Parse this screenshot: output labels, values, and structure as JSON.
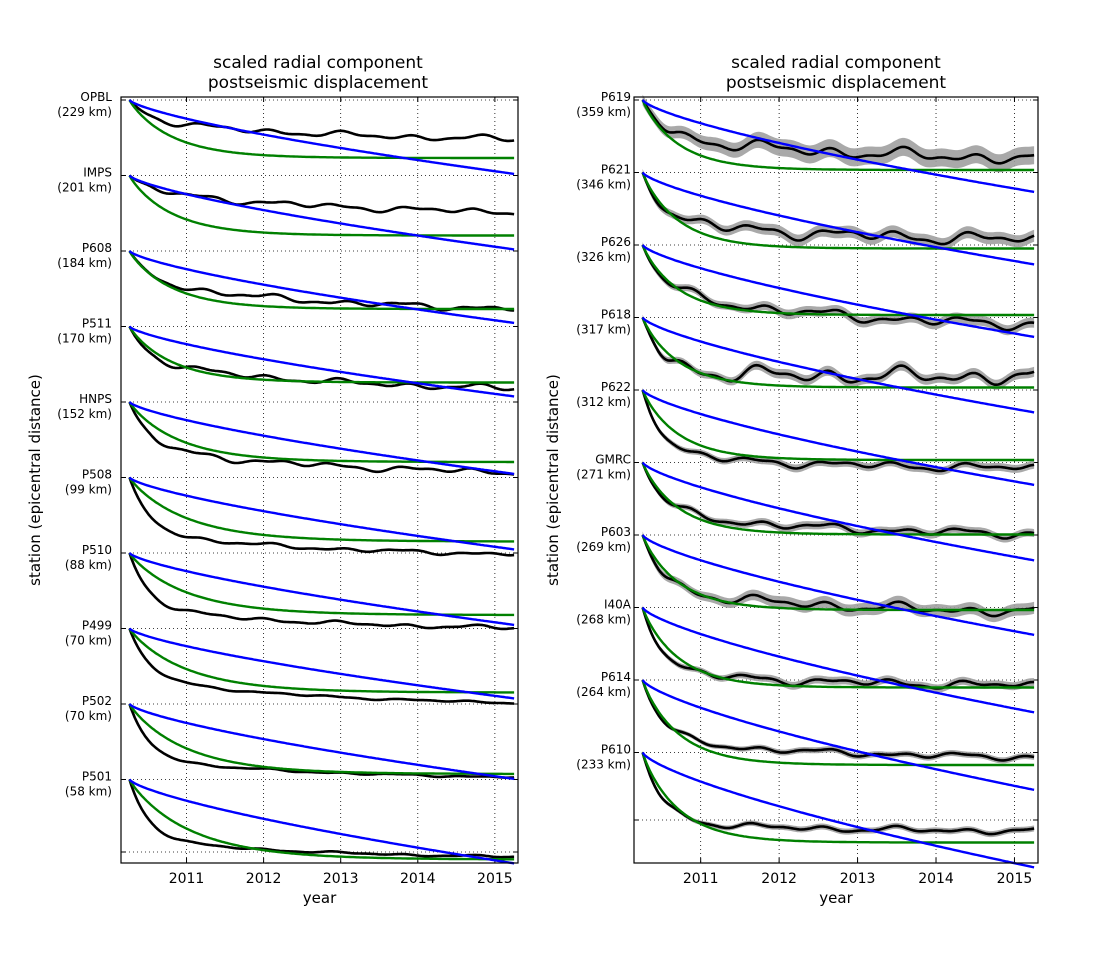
{
  "chart_data": [
    {
      "type": "line",
      "title": "scaled radial component\npostseismic displacement",
      "xlabel": "year",
      "ylabel": "station (epicentral distance)",
      "xlim": [
        2010.15,
        2015.3
      ],
      "xticks": [
        2011,
        2012,
        2013,
        2014,
        2015
      ],
      "grid": true,
      "colors": {
        "observed": "#000000",
        "uncertainty": "#a0a0a0",
        "model_a": "#008000",
        "model_b": "#0000ff"
      },
      "stations": [
        {
          "name": "OPBL",
          "dist": "(229 km)",
          "drop_data": 42,
          "plateau": 20,
          "amp_b": 74,
          "amp_g": 58,
          "shape": 0.6,
          "noise": 3,
          "band": 0
        },
        {
          "name": "IMPS",
          "dist": "(201 km)",
          "drop_data": 40,
          "plateau": 14,
          "amp_b": 74,
          "amp_g": 60,
          "shape": 0.6,
          "noise": 3,
          "band": 0
        },
        {
          "name": "P608",
          "dist": "(184 km)",
          "drop_data": 62,
          "plateau": 30,
          "amp_b": 72,
          "amp_g": 58,
          "shape": 0.6,
          "noise": 3,
          "band": 0
        },
        {
          "name": "P511",
          "dist": "(170 km)",
          "drop_data": 66,
          "plateau": 35,
          "amp_b": 70,
          "amp_g": 56,
          "shape": 0.6,
          "noise": 3,
          "band": 0
        },
        {
          "name": "HNPS",
          "dist": "(152 km)",
          "drop_data": 74,
          "plateau": 45,
          "amp_b": 72,
          "amp_g": 60,
          "shape": 0.7,
          "noise": 3,
          "band": 0
        },
        {
          "name": "P508",
          "dist": "(99 km)",
          "drop_data": 80,
          "plateau": 55,
          "amp_b": 72,
          "amp_g": 64,
          "shape": 0.8,
          "noise": 2,
          "band": 0
        },
        {
          "name": "P510",
          "dist": "(88 km)",
          "drop_data": 78,
          "plateau": 55,
          "amp_b": 72,
          "amp_g": 62,
          "shape": 0.8,
          "noise": 2,
          "band": 0
        },
        {
          "name": "P499",
          "dist": "(70 km)",
          "drop_data": 78,
          "plateau": 50,
          "amp_b": 70,
          "amp_g": 64,
          "shape": 0.8,
          "noise": 1,
          "band": 0
        },
        {
          "name": "P502",
          "dist": "(70 km)",
          "drop_data": 76,
          "plateau": 55,
          "amp_b": 75,
          "amp_g": 70,
          "shape": 0.8,
          "noise": 1,
          "band": 0
        },
        {
          "name": "P501",
          "dist": "(58 km)",
          "drop_data": 80,
          "plateau": 60,
          "amp_b": 84,
          "amp_g": 80,
          "shape": 0.85,
          "noise": 1,
          "band": 0
        }
      ]
    },
    {
      "type": "line",
      "title": "scaled radial component\npostseismic displacement",
      "xlabel": "year",
      "ylabel": "station (epicentral distance)",
      "xlim": [
        2010.15,
        2015.3
      ],
      "xticks": [
        2011,
        2012,
        2013,
        2014,
        2015
      ],
      "grid": true,
      "colors": {
        "observed": "#000000",
        "uncertainty": "#a0a0a0",
        "model_a": "#008000",
        "model_b": "#0000ff"
      },
      "stations": [
        {
          "name": "P619",
          "dist": "(359 km)",
          "drop_data": 62,
          "plateau": 35,
          "amp_b": 92,
          "amp_g": 70,
          "shape": 0.5,
          "noise": 6,
          "band": 9
        },
        {
          "name": "P621",
          "dist": "(346 km)",
          "drop_data": 70,
          "plateau": 48,
          "amp_b": 92,
          "amp_g": 76,
          "shape": 0.5,
          "noise": 6,
          "band": 6
        },
        {
          "name": "P626",
          "dist": "(326 km)",
          "drop_data": 85,
          "plateau": 45,
          "amp_b": 92,
          "amp_g": 70,
          "shape": 0.5,
          "noise": 5,
          "band": 5
        },
        {
          "name": "P618",
          "dist": "(317 km)",
          "drop_data": 60,
          "plateau": 55,
          "amp_b": 95,
          "amp_g": 70,
          "shape": 0.5,
          "noise": 8,
          "band": 5
        },
        {
          "name": "P622",
          "dist": "(312 km)",
          "drop_data": 80,
          "plateau": 65,
          "amp_b": 95,
          "amp_g": 70,
          "shape": 0.5,
          "noise": 4,
          "band": 4
        },
        {
          "name": "GMRC",
          "dist": "(271 km)",
          "drop_data": 75,
          "plateau": 50,
          "amp_b": 98,
          "amp_g": 72,
          "shape": 0.5,
          "noise": 4,
          "band": 4
        },
        {
          "name": "P603",
          "dist": "(269 km)",
          "drop_data": 80,
          "plateau": 55,
          "amp_b": 100,
          "amp_g": 75,
          "shape": 0.5,
          "noise": 5,
          "band": 6
        },
        {
          "name": "I40A",
          "dist": "(268 km)",
          "drop_data": 80,
          "plateau": 65,
          "amp_b": 105,
          "amp_g": 80,
          "shape": 0.5,
          "noise": 4,
          "band": 4
        },
        {
          "name": "P614",
          "dist": "(264 km)",
          "drop_data": 80,
          "plateau": 60,
          "amp_b": 110,
          "amp_g": 85,
          "shape": 0.5,
          "noise": 3,
          "band": 3
        },
        {
          "name": "P610",
          "dist": "(233 km)",
          "drop_data": 80,
          "plateau": 70,
          "amp_b": 115,
          "amp_g": 90,
          "shape": 0.5,
          "noise": 3,
          "band": 3
        }
      ]
    }
  ]
}
